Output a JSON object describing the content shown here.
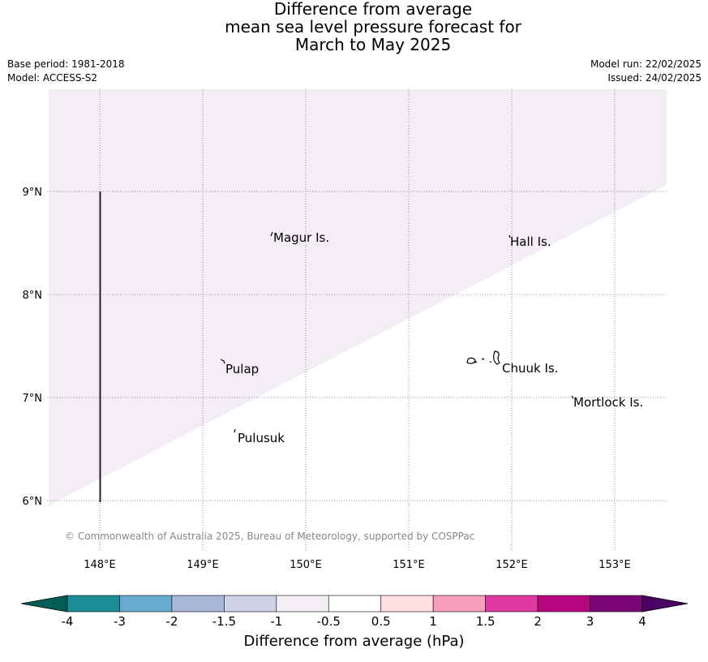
{
  "title": {
    "line1": "Difference from average",
    "line2": "mean sea level pressure forecast for",
    "line3": "March to May 2025"
  },
  "meta": {
    "base_period": "Base period: 1981-2018",
    "model": "Model: ACCESS-S2",
    "model_run": "Model run: 22/02/2025",
    "issued": "Issued: 24/02/2025"
  },
  "map": {
    "lon_ticks": [
      "148°E",
      "149°E",
      "150°E",
      "151°E",
      "152°E",
      "153°E"
    ],
    "lat_ticks": [
      "9°N",
      "8°N",
      "7°N",
      "6°N"
    ],
    "places": [
      "Magur Is.",
      "Hall Is.",
      "Pulap",
      "Chuuk Is.",
      "Mortlock Is.",
      "Pulusuk"
    ],
    "shaded_color": "#f3edf6",
    "copyright": "© Commonwealth of Australia 2025, Bureau of Meteorology, supported by COSPPac"
  },
  "colorbar": {
    "colors": [
      "#005e55",
      "#1b8d96",
      "#68aad0",
      "#a8b7d8",
      "#d0d0e6",
      "#f3edf6",
      "#ffffff",
      "#ffdfe0",
      "#f89fbb",
      "#e03aa1",
      "#b8047f",
      "#7d0677",
      "#4b0063"
    ],
    "tick_labels": [
      "-4",
      "-3",
      "-2",
      "-1.5",
      "-1",
      "-0.5",
      "0.5",
      "1",
      "1.5",
      "2",
      "3",
      "4"
    ],
    "label": "Difference from average (hPa)"
  }
}
